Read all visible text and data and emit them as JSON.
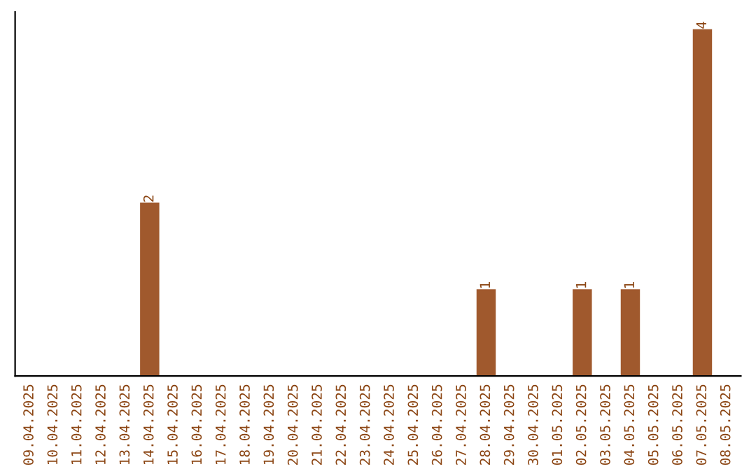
{
  "chart_data": {
    "type": "bar",
    "categories": [
      "09.04.2025",
      "10.04.2025",
      "11.04.2025",
      "12.04.2025",
      "13.04.2025",
      "14.04.2025",
      "15.04.2025",
      "16.04.2025",
      "17.04.2025",
      "18.04.2025",
      "19.04.2025",
      "20.04.2025",
      "21.04.2025",
      "22.04.2025",
      "23.04.2025",
      "24.04.2025",
      "25.04.2025",
      "26.04.2025",
      "27.04.2025",
      "28.04.2025",
      "29.04.2025",
      "30.04.2025",
      "01.05.2025",
      "02.05.2025",
      "03.05.2025",
      "04.05.2025",
      "05.05.2025",
      "06.05.2025",
      "07.05.2025",
      "08.05.2025"
    ],
    "values": [
      0,
      0,
      0,
      0,
      0,
      2,
      0,
      0,
      0,
      0,
      0,
      0,
      0,
      0,
      0,
      0,
      0,
      0,
      0,
      1,
      0,
      0,
      0,
      1,
      0,
      1,
      0,
      0,
      4,
      0
    ],
    "value_labels": [
      null,
      null,
      null,
      null,
      null,
      "2",
      null,
      null,
      null,
      null,
      null,
      null,
      null,
      null,
      null,
      null,
      null,
      null,
      null,
      "1",
      null,
      null,
      null,
      "1",
      null,
      "1",
      null,
      null,
      "4",
      null
    ],
    "color": "#a0592d",
    "ylim": [
      0,
      4.2
    ],
    "tick_labels": "x",
    "grid": false,
    "legend": false
  }
}
